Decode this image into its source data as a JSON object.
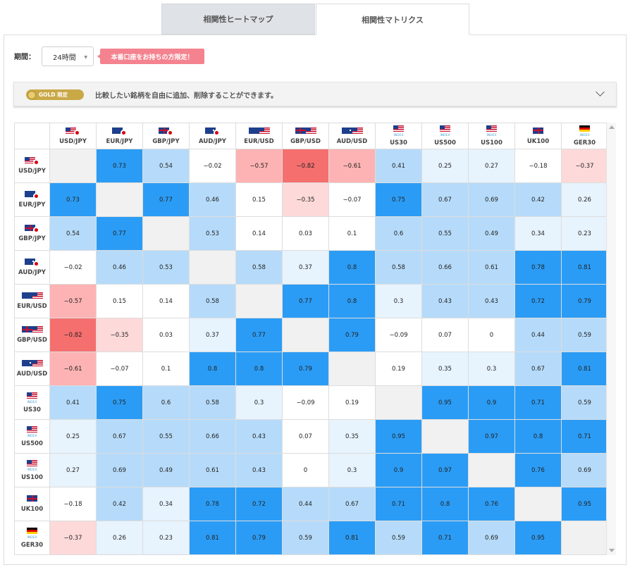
{
  "tabs": [
    {
      "label": "相関性ヒートマップ",
      "active": false
    },
    {
      "label": "相関性マトリクス",
      "active": true
    }
  ],
  "period": {
    "label": "期間：",
    "value": "24時間"
  },
  "promo": {
    "text": "本番口座をお持ちの方限定！"
  },
  "gold_bar": {
    "badge": "GOLD 限定",
    "text": "比較したい銘柄を自由に追加、削除することができます。"
  },
  "colors": {
    "strong_pos": "#2b9cf5",
    "mid_pos": "#b6dbfa",
    "weak_pos": "#e7f3fd",
    "strong_neg": "#f56f6f",
    "mid_neg": "#fdb3b3",
    "weak_neg": "#fdd9d9",
    "diag": "#f1f1f1"
  },
  "matrix": {
    "symbols": [
      {
        "name": "USD/JPY",
        "flags": [
          "us",
          "jp"
        ]
      },
      {
        "name": "EUR/JPY",
        "flags": [
          "eu",
          "jp"
        ]
      },
      {
        "name": "GBP/JPY",
        "flags": [
          "uk",
          "jp"
        ]
      },
      {
        "name": "AUD/JPY",
        "flags": [
          "au",
          "jp"
        ]
      },
      {
        "name": "EUR/USD",
        "flags": [
          "eu",
          "us"
        ]
      },
      {
        "name": "GBP/USD",
        "flags": [
          "uk",
          "us"
        ]
      },
      {
        "name": "AUD/USD",
        "flags": [
          "au",
          "us"
        ]
      },
      {
        "name": "US30",
        "flags": [
          "us"
        ],
        "tag": "INDEX"
      },
      {
        "name": "US500",
        "flags": [
          "us"
        ],
        "tag": "INDEX"
      },
      {
        "name": "US100",
        "flags": [
          "us"
        ],
        "tag": "INDEX"
      },
      {
        "name": "UK100",
        "flags": [
          "uk"
        ]
      },
      {
        "name": "GER30",
        "flags": [
          "de"
        ],
        "tag": "INDEX"
      }
    ],
    "rows": [
      [
        null,
        "0.73",
        "0.54",
        "−0.02",
        "−0.57",
        "−0.82",
        "−0.61",
        "0.41",
        "0.25",
        "0.27",
        "−0.18",
        "−0.37"
      ],
      [
        "0.73",
        null,
        "0.77",
        "0.46",
        "0.15",
        "−0.35",
        "−0.07",
        "0.75",
        "0.67",
        "0.69",
        "0.42",
        "0.26"
      ],
      [
        "0.54",
        "0.77",
        null,
        "0.53",
        "0.14",
        "0.03",
        "0.1",
        "0.6",
        "0.55",
        "0.49",
        "0.34",
        "0.23"
      ],
      [
        "−0.02",
        "0.46",
        "0.53",
        null,
        "0.58",
        "0.37",
        "0.8",
        "0.58",
        "0.66",
        "0.61",
        "0.78",
        "0.81"
      ],
      [
        "−0.57",
        "0.15",
        "0.14",
        "0.58",
        null,
        "0.77",
        "0.8",
        "0.3",
        "0.43",
        "0.43",
        "0.72",
        "0.79"
      ],
      [
        "−0.82",
        "−0.35",
        "0.03",
        "0.37",
        "0.77",
        null,
        "0.79",
        "−0.09",
        "0.07",
        "0",
        "0.44",
        "0.59"
      ],
      [
        "−0.61",
        "−0.07",
        "0.1",
        "0.8",
        "0.8",
        "0.79",
        null,
        "0.19",
        "0.35",
        "0.3",
        "0.67",
        "0.81"
      ],
      [
        "0.41",
        "0.75",
        "0.6",
        "0.58",
        "0.3",
        "−0.09",
        "0.19",
        null,
        "0.95",
        "0.9",
        "0.71",
        "0.59"
      ],
      [
        "0.25",
        "0.67",
        "0.55",
        "0.66",
        "0.43",
        "0.07",
        "0.35",
        "0.95",
        null,
        "0.97",
        "0.8",
        "0.71"
      ],
      [
        "0.27",
        "0.69",
        "0.49",
        "0.61",
        "0.43",
        "0",
        "0.3",
        "0.9",
        "0.97",
        null,
        "0.76",
        "0.69"
      ],
      [
        "−0.18",
        "0.42",
        "0.34",
        "0.78",
        "0.72",
        "0.44",
        "0.67",
        "0.71",
        "0.8",
        "0.76",
        null,
        "0.95"
      ],
      [
        "−0.37",
        "0.26",
        "0.23",
        "0.81",
        "0.79",
        "0.59",
        "0.81",
        "0.59",
        "0.71",
        "0.69",
        "0.95",
        null
      ]
    ]
  }
}
